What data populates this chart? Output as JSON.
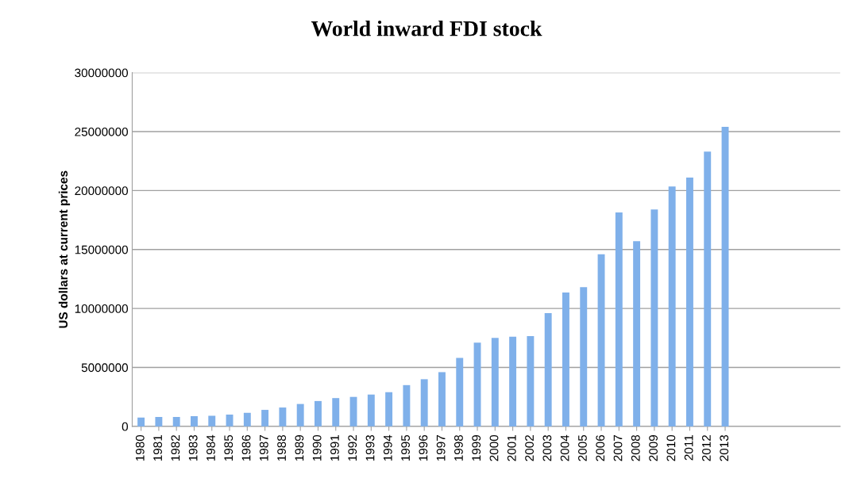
{
  "chart_data": {
    "type": "bar",
    "title": "World inward FDI stock",
    "ylabel": "US dollars at current prices",
    "categories": [
      "1980",
      "1981",
      "1982",
      "1983",
      "1984",
      "1985",
      "1986",
      "1987",
      "1988",
      "1989",
      "1990",
      "1991",
      "1992",
      "1993",
      "1994",
      "1995",
      "1996",
      "1997",
      "1998",
      "1999",
      "2000",
      "2001",
      "2002",
      "2003",
      "2004",
      "2005",
      "2006",
      "2007",
      "2008",
      "2009",
      "2010",
      "2011",
      "2012",
      "2013"
    ],
    "values": [
      740000,
      800000,
      800000,
      870000,
      900000,
      1000000,
      1150000,
      1400000,
      1600000,
      1900000,
      2150000,
      2400000,
      2500000,
      2700000,
      2900000,
      3500000,
      4000000,
      4600000,
      5800000,
      7100000,
      7500000,
      7600000,
      7650000,
      9600000,
      11350000,
      11800000,
      14600000,
      18150000,
      15700000,
      18400000,
      20350000,
      21100000,
      23300000,
      25400000
    ],
    "color": "#7fb0ea",
    "ylim": [
      0,
      30000000
    ],
    "yticks": [
      0,
      5000000,
      10000000,
      15000000,
      20000000,
      25000000,
      30000000
    ],
    "grid": "y"
  }
}
